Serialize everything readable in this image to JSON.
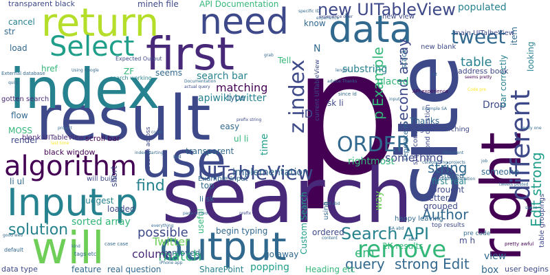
{
  "palette": {
    "background": "#ffffff",
    "deep_purple": "#440154",
    "indigo": "#482878",
    "blue": "#3e4989",
    "slate_blue": "#31688e",
    "teal": "#26828e",
    "green_teal": "#1f9e89",
    "green": "#35b779",
    "lime": "#6ece58",
    "yellow_green": "#b5de2b",
    "yellow": "#fde725"
  },
  "words": [
    "p",
    "search",
    "site",
    "result",
    "index",
    "right",
    "output",
    "use",
    "first",
    "need",
    "return",
    "will",
    "Input p",
    "algorithm",
    "data",
    "Select",
    "different",
    "remove",
    "z index",
    "UITableView",
    "new UITableView",
    "tweet",
    "ORDER",
    "Search API",
    "second array",
    "Edit strong",
    "p Example",
    "Author",
    "query",
    "strong Edit",
    "string",
    "matching",
    "Twitter",
    "solution",
    "find",
    "match",
    "possible",
    "column",
    "em",
    "API Documentation",
    "search bar",
    "table",
    "apiwiki twitter",
    "transparent",
    "substring",
    "sorted array",
    "implementation",
    "ID",
    "time",
    "something",
    "first real",
    "rightmost",
    "way",
    "populated",
    "looking",
    "Drop",
    "bar correctly",
    "Thanks",
    "seperate m",
    "begins searching",
    "second question",
    "start contains",
    "SharePoint",
    "Heading etc",
    "box",
    "view",
    "user begins",
    "Custom Search",
    "ordered",
    "popping",
    "go away",
    "2K results",
    "begin typing",
    "useful",
    "removed",
    "real question",
    "feature",
    "data type",
    "render",
    "MOSS",
    "flow",
    "gotten search",
    "black window",
    "scroll bar",
    "blank UITableView",
    "will build",
    "short",
    "suggest",
    "li ul",
    "loaded",
    "ZF",
    "seems",
    "cancel",
    "load",
    "str",
    "transparent black",
    "mine",
    "h file",
    "Tell",
    "know",
    "N",
    "item",
    "stack",
    "placed",
    "sk li",
    "type",
    "easy",
    "ul li",
    "top",
    "Example Input",
    "li sk",
    "brought",
    "better",
    "grouped",
    "stored",
    "someone",
    "top results",
    "happy leaving",
    "m h",
    "pre code",
    "new view",
    "main UITalbeView",
    "new blank",
    "address book",
    "tags etc",
    "case case",
    "default",
    "using",
    "href",
    "Expected Output",
    "search working",
    "search across",
    "prefix string",
    "actual query",
    "Documentation",
    "advice Thanks",
    "length",
    "current UITableView",
    "since id",
    "seems pretty",
    "pretty awful",
    "experience",
    "API experience",
    "Code pre",
    "table groupings",
    "really one",
    "Example SA",
    "categorizing projects",
    "job",
    "document",
    "input",
    "recommendation",
    "grab",
    "specific ID",
    "experience offer",
    "int",
    "good web",
    "content",
    "abd abd",
    "SA abd",
    "prefix",
    "page sorted",
    "everything",
    "kind",
    "iPhone app",
    "Using Google",
    "External database",
    "index starting",
    "last time",
    "project",
    "quite",
    "cover",
    "space",
    "tweets posted",
    "abd",
    "Bad"
  ]
}
